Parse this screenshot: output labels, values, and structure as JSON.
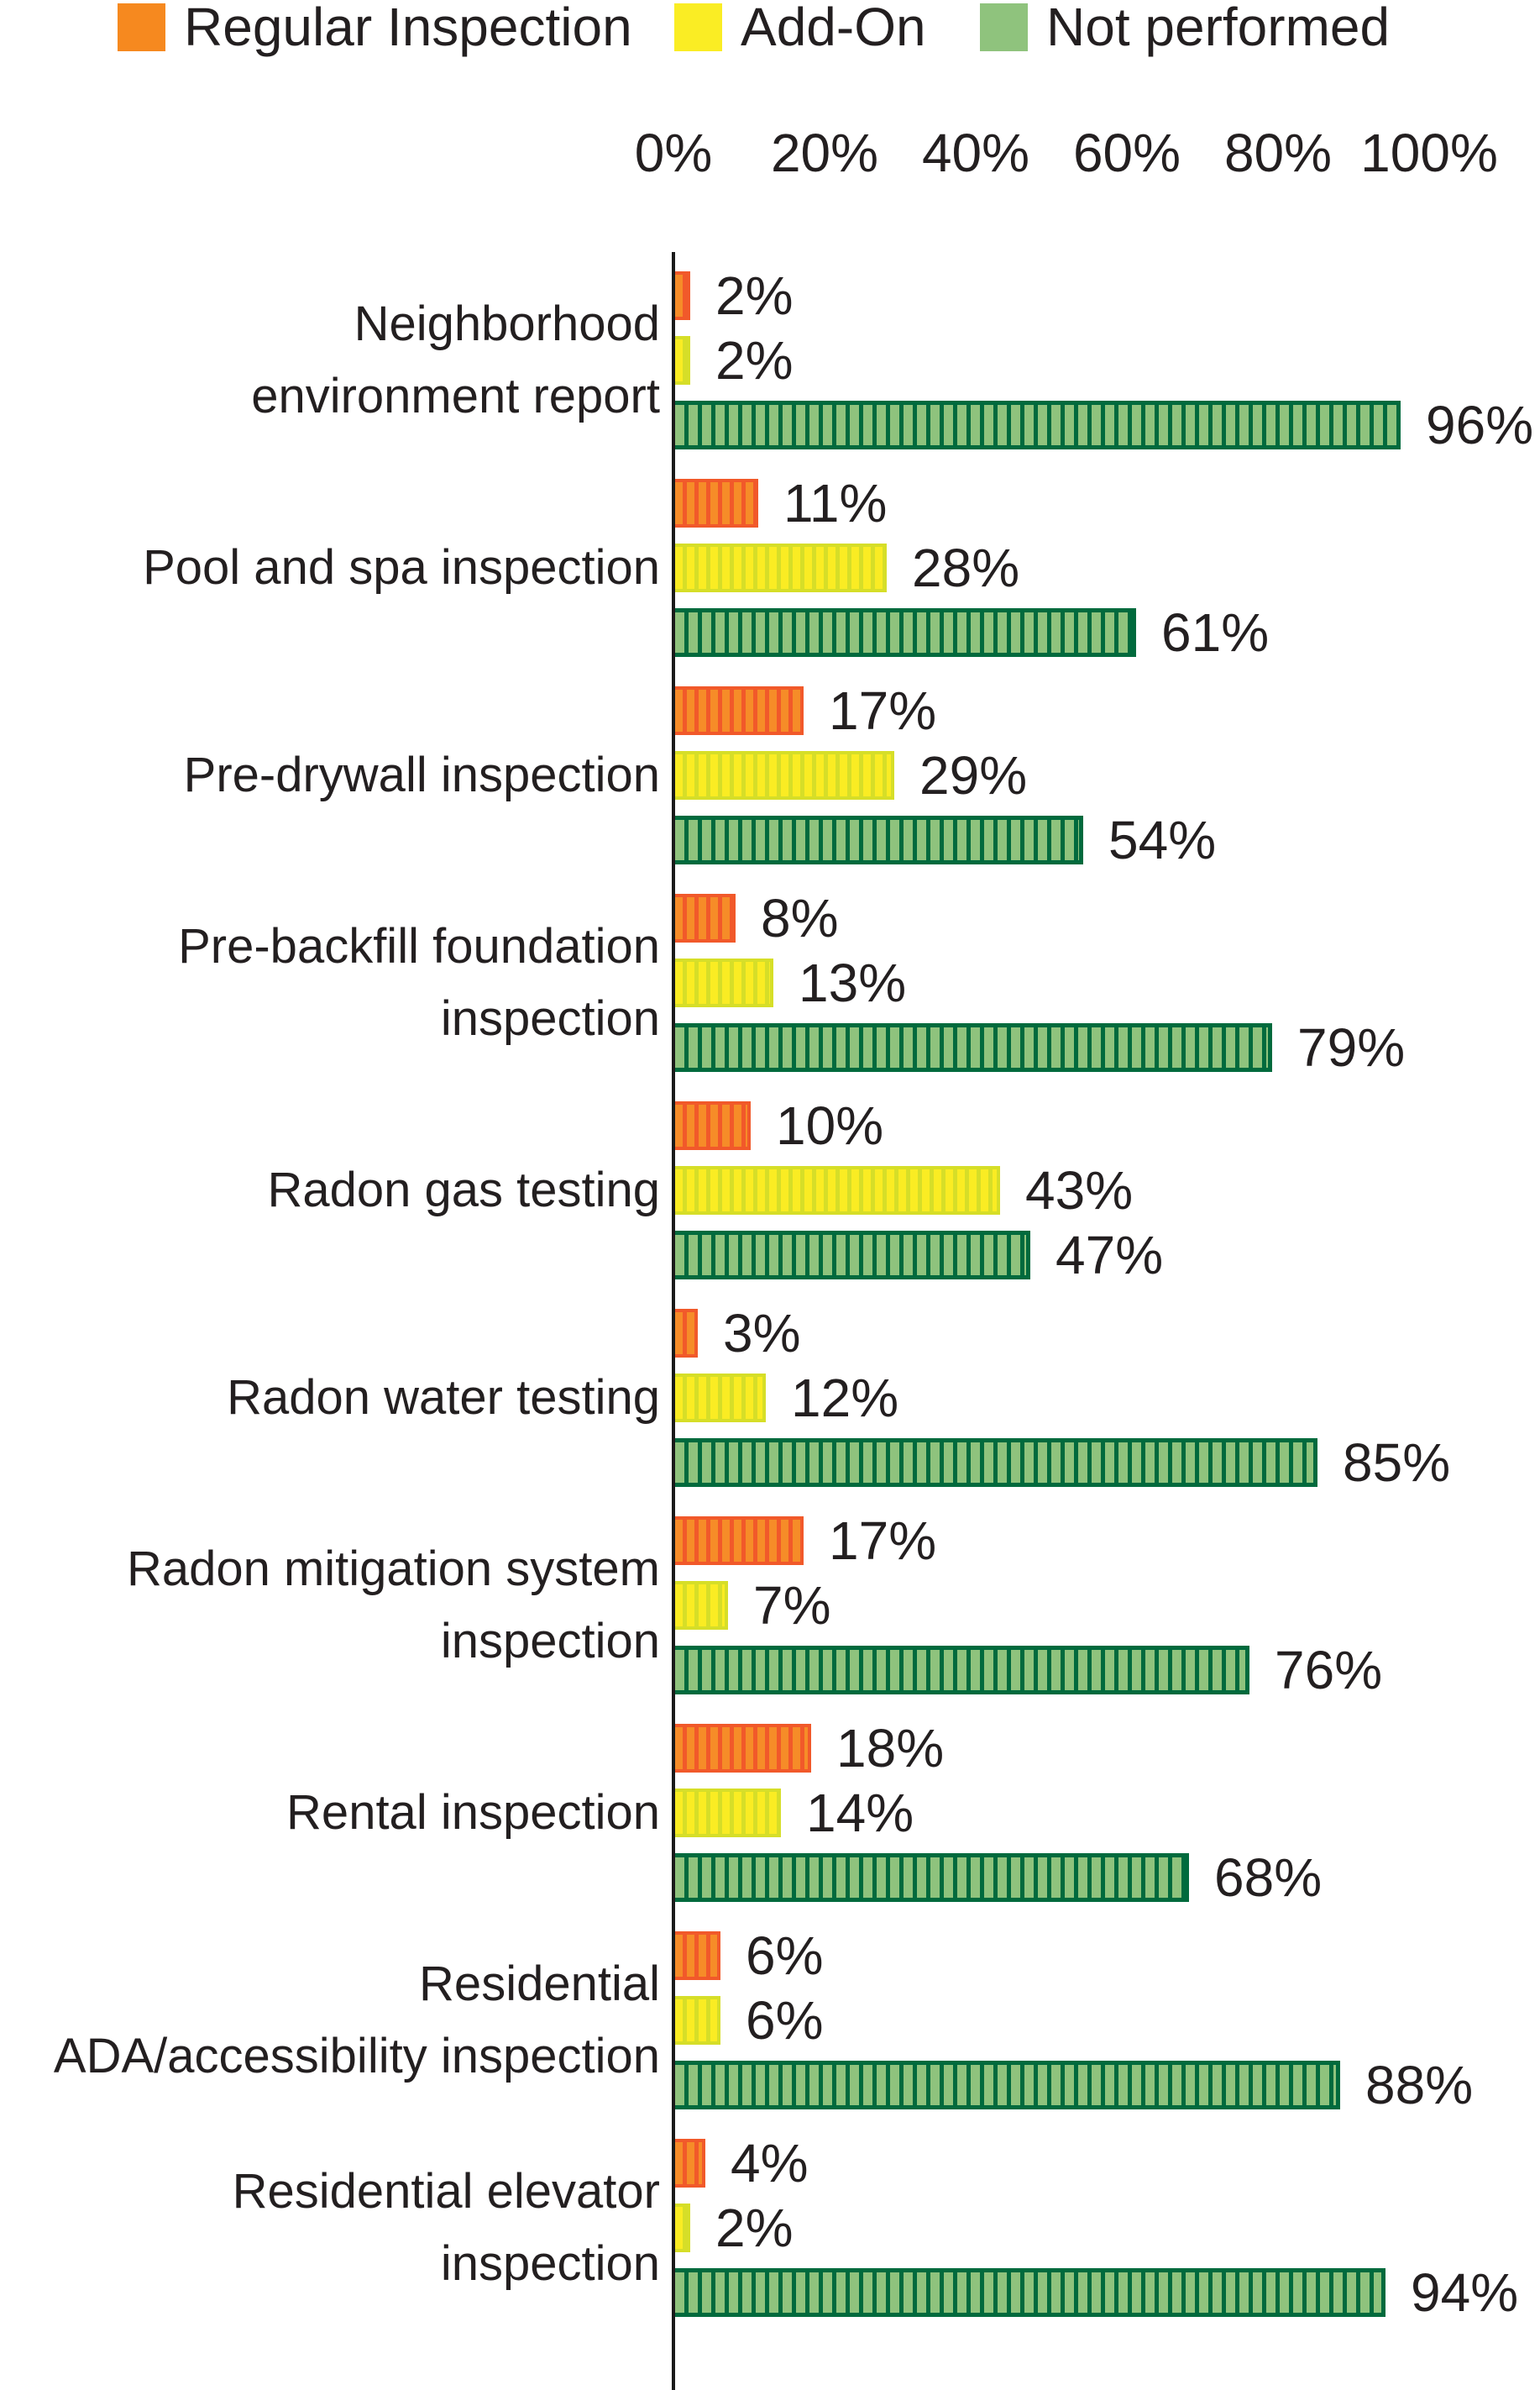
{
  "colors": {
    "regular_legend": "#F6891F",
    "regular_fill": "#F68C28",
    "regular_stripe": "#F1592A",
    "addon_legend": "#FAED24",
    "addon_fill": "#FAEC23",
    "addon_stripe": "#D6DE28",
    "not_performed_legend": "#8FC37D",
    "not_performed_fill": "#8FC37D",
    "not_performed_stripe": "#006A3D",
    "text": "#231F20",
    "axis": "#1A1A1A"
  },
  "chart_data": {
    "type": "bar",
    "orientation": "horizontal",
    "title": "",
    "xlabel": "",
    "ylabel": "",
    "legend_position": "top",
    "grid": false,
    "x_axis": {
      "range": [
        0,
        100
      ],
      "ticks": [
        "0%",
        "20%",
        "40%",
        "60%",
        "80%",
        "100%"
      ]
    },
    "categories": [
      "Neighborhood environment report",
      "Pool and spa inspection",
      "Pre-drywall inspection",
      "Pre-backfill foundation inspection",
      "Radon gas testing",
      "Radon water testing",
      "Radon mitigation system inspection",
      "Rental inspection",
      "Residential ADA/accessibility inspection",
      "Residential elevator inspection"
    ],
    "category_lines": [
      [
        "Neighborhood",
        "environment report"
      ],
      [
        "Pool and spa inspection"
      ],
      [
        "Pre-drywall inspection"
      ],
      [
        "Pre-backfill foundation",
        "inspection"
      ],
      [
        "Radon gas testing"
      ],
      [
        "Radon water testing"
      ],
      [
        "Radon mitigation system",
        "inspection"
      ],
      [
        "Rental inspection"
      ],
      [
        "Residential",
        "ADA/accessibility inspection"
      ],
      [
        "Residential elevator",
        "inspection"
      ]
    ],
    "series": [
      {
        "name": "Regular Inspection",
        "key": "regular-inspection",
        "values": [
          2,
          11,
          17,
          8,
          10,
          3,
          17,
          18,
          6,
          4
        ],
        "labels": [
          "2%",
          "11%",
          "17%",
          "8%",
          "10%",
          "3%",
          "17%",
          "18%",
          "6%",
          "4%"
        ]
      },
      {
        "name": "Add-On",
        "key": "add-on",
        "values": [
          2,
          28,
          29,
          13,
          43,
          12,
          7,
          14,
          6,
          2
        ],
        "labels": [
          "2%",
          "28%",
          "29%",
          "13%",
          "43%",
          "12%",
          "7%",
          "14%",
          "6%",
          "2%"
        ]
      },
      {
        "name": "Not performed",
        "key": "not-performed",
        "values": [
          96,
          61,
          54,
          79,
          47,
          85,
          76,
          68,
          88,
          94
        ],
        "labels": [
          "96%",
          "61%",
          "54%",
          "79%",
          "47%",
          "85%",
          "76%",
          "68%",
          "88%",
          "94%"
        ]
      }
    ]
  }
}
